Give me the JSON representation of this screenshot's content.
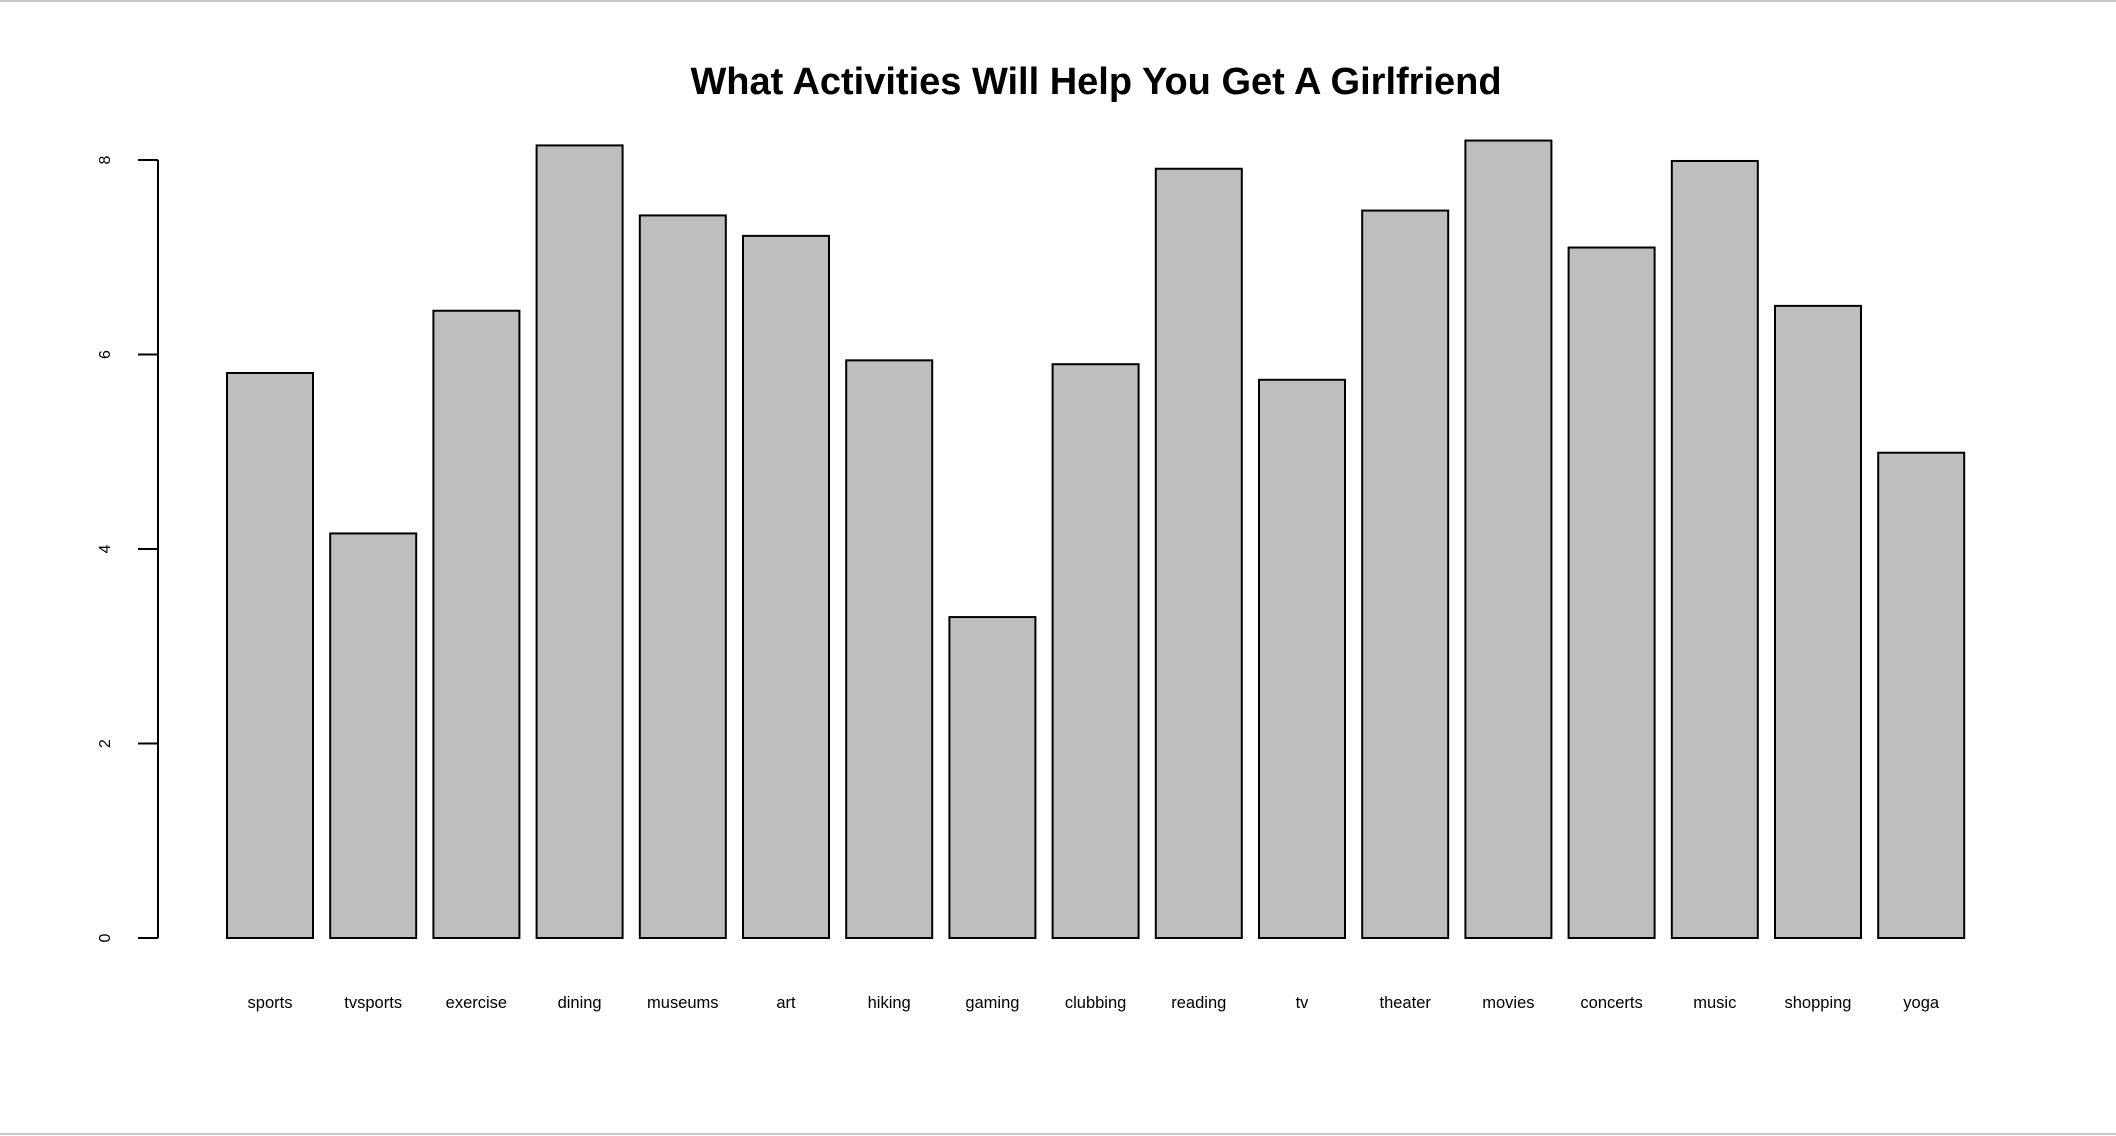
{
  "chart_data": {
    "type": "bar",
    "title": "What Activities Will Help You Get A Girlfriend",
    "xlabel": "",
    "ylabel": "",
    "categories": [
      "sports",
      "tvsports",
      "exercise",
      "dining",
      "museums",
      "art",
      "hiking",
      "gaming",
      "clubbing",
      "reading",
      "tv",
      "theater",
      "movies",
      "concerts",
      "music",
      "shopping",
      "yoga"
    ],
    "values": [
      5.81,
      4.16,
      6.45,
      8.15,
      7.43,
      7.22,
      5.94,
      3.3,
      5.9,
      7.91,
      5.74,
      7.48,
      8.2,
      7.1,
      7.99,
      6.5,
      4.99
    ],
    "ylim": [
      0,
      8
    ],
    "yticks": [
      0,
      2,
      4,
      6,
      8
    ],
    "grid": false,
    "colors": {
      "bar_fill": "#bebebe",
      "bar_stroke": "#000000",
      "axis": "#000000",
      "text": "#000000"
    }
  }
}
